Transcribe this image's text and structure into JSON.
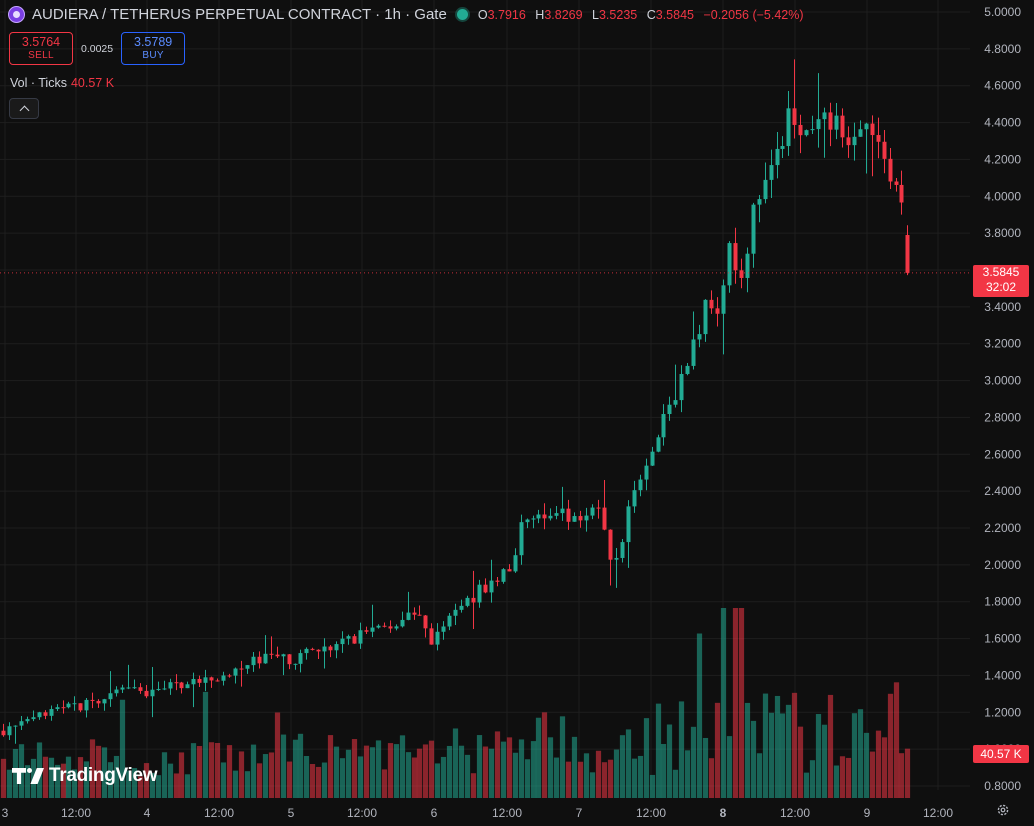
{
  "header": {
    "title": "AUDIERA / TETHERUS PERPETUAL CONTRACT · 1h · Gate",
    "ohlc": {
      "o_label": "O",
      "o": "3.7916",
      "h_label": "H",
      "h": "3.8269",
      "l_label": "L",
      "l": "3.5235",
      "c_label": "C",
      "c": "3.5845",
      "change": "−0.2056 (−5.42%)"
    }
  },
  "trade": {
    "sell_price": "3.5764",
    "sell_label": "SELL",
    "spread": "0.0025",
    "buy_price": "3.5789",
    "buy_label": "BUY"
  },
  "volume_legend": {
    "label": "Vol · Ticks",
    "value": "40.57 K"
  },
  "last_price": {
    "price": "3.5845",
    "countdown": "32:02"
  },
  "volume_tag": "40.57 K",
  "branding": "TradingView",
  "icons": {
    "settings": "gear-icon",
    "collapse": "chevron-up-icon",
    "symbol": "audiera-coin-icon",
    "status": "market-open-dot-icon"
  },
  "colors": {
    "up": "#22ab94",
    "down": "#f23645",
    "background": "#0f0f0f",
    "grid": "#1e1e1e"
  },
  "chart_data": {
    "type": "candlestick",
    "interval": "1h",
    "y_axis_labels": [
      "5.0000",
      "4.8000",
      "4.6000",
      "4.4000",
      "4.2000",
      "4.0000",
      "3.8000",
      "3.6000",
      "3.4000",
      "3.2000",
      "3.0000",
      "2.8000",
      "2.6000",
      "2.4000",
      "2.2000",
      "2.0000",
      "1.8000",
      "1.6000",
      "1.4000",
      "1.2000",
      "1.0000",
      "0.8000"
    ],
    "y_axis_values": [
      5.0,
      4.8,
      4.6,
      4.4,
      4.2,
      4.0,
      3.8,
      3.6,
      3.4,
      3.2,
      3.0,
      2.8,
      2.6,
      2.4,
      2.2,
      2.0,
      1.8,
      1.6,
      1.4,
      1.2,
      1.0,
      0.8
    ],
    "x_axis_labels": [
      "3",
      "12:00",
      "4",
      "12:00",
      "5",
      "12:00",
      "6",
      "12:00",
      "7",
      "12:00",
      "8",
      "12:00",
      "9",
      "12:00"
    ],
    "bold_x_label": "8",
    "ylim": [
      0.72,
      5.05
    ],
    "price_path": [
      [
        0,
        1.1
      ],
      [
        18,
        1.12
      ],
      [
        40,
        1.18
      ],
      [
        70,
        1.22
      ],
      [
        110,
        1.28
      ],
      [
        125,
        1.33
      ],
      [
        150,
        1.3
      ],
      [
        180,
        1.35
      ],
      [
        210,
        1.38
      ],
      [
        240,
        1.42
      ],
      [
        260,
        1.5
      ],
      [
        290,
        1.48
      ],
      [
        320,
        1.56
      ],
      [
        345,
        1.58
      ],
      [
        375,
        1.66
      ],
      [
        400,
        1.7
      ],
      [
        420,
        1.72
      ],
      [
        432,
        1.55
      ],
      [
        445,
        1.72
      ],
      [
        470,
        1.82
      ],
      [
        490,
        1.9
      ],
      [
        510,
        2.0
      ],
      [
        525,
        2.28
      ],
      [
        550,
        2.26
      ],
      [
        580,
        2.28
      ],
      [
        598,
        2.3
      ],
      [
        610,
        2.05
      ],
      [
        620,
        2.08
      ],
      [
        632,
        2.4
      ],
      [
        650,
        2.55
      ],
      [
        668,
        2.85
      ],
      [
        680,
        3.0
      ],
      [
        695,
        3.2
      ],
      [
        708,
        3.45
      ],
      [
        718,
        3.3
      ],
      [
        728,
        3.75
      ],
      [
        740,
        3.5
      ],
      [
        755,
        4.0
      ],
      [
        770,
        4.2
      ],
      [
        790,
        4.43
      ],
      [
        810,
        4.35
      ],
      [
        830,
        4.4
      ],
      [
        850,
        4.3
      ],
      [
        870,
        4.42
      ],
      [
        882,
        4.2
      ],
      [
        890,
        4.05
      ],
      [
        900,
        4.0
      ],
      [
        908,
        3.63
      ]
    ],
    "volume_legend_value": "40.57 K"
  }
}
